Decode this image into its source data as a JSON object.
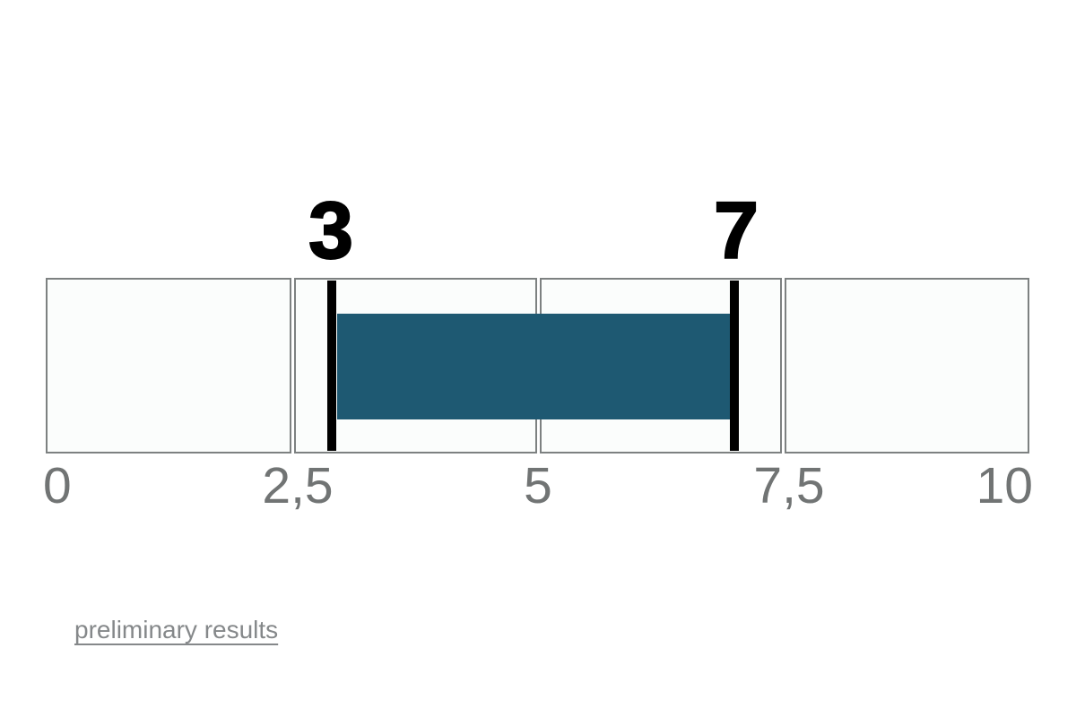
{
  "chart_data": {
    "type": "bar",
    "subtype": "range-scale",
    "orientation": "horizontal",
    "title": "",
    "xlim": [
      0,
      10
    ],
    "x_tick_labels": [
      "0",
      "2,5",
      "5",
      "7,5",
      "10"
    ],
    "x_tick_values": [
      0,
      2.5,
      5,
      7.5,
      10
    ],
    "segments": [
      {
        "from": 0,
        "to": 2.5
      },
      {
        "from": 2.5,
        "to": 5
      },
      {
        "from": 5,
        "to": 7.5
      },
      {
        "from": 7.5,
        "to": 10
      }
    ],
    "range": {
      "start": 3,
      "end": 7
    },
    "markers": [
      {
        "value": 3,
        "label": "3"
      },
      {
        "value": 7,
        "label": "7"
      }
    ],
    "grid": "off",
    "legend": "none",
    "colors": {
      "range_bar": "#1E5972",
      "marker": "#000000",
      "marker_label": "#000000",
      "segment_fill": "#FBFDFC",
      "segment_border": "#7D8181",
      "tick_label": "#717474",
      "link": "#85888A",
      "page_background": "#FFFFFF"
    }
  },
  "footer": {
    "link_label": "preliminary results"
  }
}
